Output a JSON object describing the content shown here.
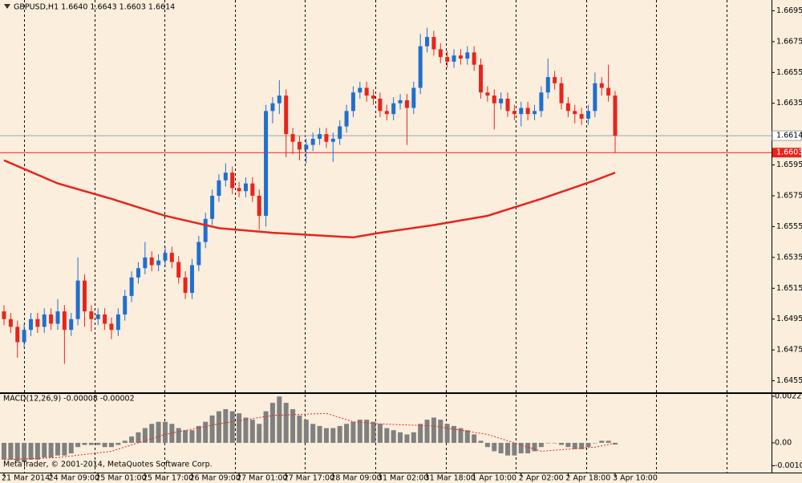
{
  "chart_data": [
    {
      "type": "candlestick",
      "title": "GBPUSD,H1  1.6640 1.6643 1.6603 1.6614",
      "up_color": "#1f6fd0",
      "down_color": "#e8241c",
      "candles": [
        [
          1.65,
          1.6504,
          1.6491,
          1.6495
        ],
        [
          1.6495,
          1.6499,
          1.6486,
          1.649
        ],
        [
          1.649,
          1.6494,
          1.647,
          1.648
        ],
        [
          1.648,
          1.6492,
          1.6476,
          1.6488
        ],
        [
          1.6488,
          1.6499,
          1.6484,
          1.6495
        ],
        [
          1.6495,
          1.6499,
          1.6486,
          1.649
        ],
        [
          1.649,
          1.6502,
          1.6486,
          1.6498
        ],
        [
          1.6498,
          1.6502,
          1.6488,
          1.6492
        ],
        [
          1.6492,
          1.6508,
          1.6488,
          1.65
        ],
        [
          1.65,
          1.6504,
          1.6466,
          1.6488
        ],
        [
          1.6488,
          1.6499,
          1.6484,
          1.6495
        ],
        [
          1.6495,
          1.6535,
          1.6491,
          1.652
        ],
        [
          1.652,
          1.6524,
          1.649,
          1.65
        ],
        [
          1.65,
          1.6504,
          1.6487,
          1.6495
        ],
        [
          1.6495,
          1.6502,
          1.6491,
          1.6498
        ],
        [
          1.6498,
          1.6502,
          1.6488,
          1.6492
        ],
        [
          1.6492,
          1.6496,
          1.6482,
          1.6488
        ],
        [
          1.6488,
          1.6502,
          1.6484,
          1.6498
        ],
        [
          1.6498,
          1.6514,
          1.6494,
          1.651
        ],
        [
          1.651,
          1.6526,
          1.6506,
          1.6522
        ],
        [
          1.6522,
          1.6532,
          1.6518,
          1.6528
        ],
        [
          1.6528,
          1.6545,
          1.6524,
          1.6535
        ],
        [
          1.6535,
          1.6539,
          1.6526,
          1.653
        ],
        [
          1.653,
          1.6537,
          1.6526,
          1.6533
        ],
        [
          1.6533,
          1.6542,
          1.6529,
          1.6538
        ],
        [
          1.6538,
          1.6542,
          1.6528,
          1.6532
        ],
        [
          1.6532,
          1.6536,
          1.6518,
          1.6522
        ],
        [
          1.6522,
          1.6526,
          1.6508,
          1.6512
        ],
        [
          1.6512,
          1.6534,
          1.6508,
          1.653
        ],
        [
          1.653,
          1.6549,
          1.6526,
          1.6545
        ],
        [
          1.6545,
          1.6564,
          1.6541,
          1.656
        ],
        [
          1.656,
          1.6579,
          1.6556,
          1.6575
        ],
        [
          1.6575,
          1.6589,
          1.6571,
          1.6585
        ],
        [
          1.6585,
          1.6596,
          1.6581,
          1.659
        ],
        [
          1.659,
          1.6594,
          1.6576,
          1.658
        ],
        [
          1.658,
          1.6584,
          1.6574,
          1.6578
        ],
        [
          1.6578,
          1.6587,
          1.6574,
          1.6583
        ],
        [
          1.6583,
          1.6587,
          1.6571,
          1.6575
        ],
        [
          1.6575,
          1.6579,
          1.6553,
          1.6562
        ],
        [
          1.6562,
          1.6634,
          1.6555,
          1.663
        ],
        [
          1.663,
          1.6639,
          1.6622,
          1.6635
        ],
        [
          1.6635,
          1.665,
          1.6628,
          1.664
        ],
        [
          1.664,
          1.6644,
          1.66,
          1.6615
        ],
        [
          1.6615,
          1.6619,
          1.6602,
          1.661
        ],
        [
          1.661,
          1.6614,
          1.6598,
          1.6605
        ],
        [
          1.6605,
          1.6612,
          1.6596,
          1.6608
        ],
        [
          1.6608,
          1.6616,
          1.6604,
          1.6612
        ],
        [
          1.6612,
          1.6619,
          1.6608,
          1.6615
        ],
        [
          1.6615,
          1.6619,
          1.6606,
          1.661
        ],
        [
          1.661,
          1.6616,
          1.6597,
          1.6612
        ],
        [
          1.6612,
          1.6624,
          1.6608,
          1.662
        ],
        [
          1.662,
          1.6634,
          1.6616,
          1.663
        ],
        [
          1.663,
          1.6646,
          1.6626,
          1.6642
        ],
        [
          1.6642,
          1.6649,
          1.6638,
          1.6645
        ],
        [
          1.6645,
          1.6649,
          1.6636,
          1.664
        ],
        [
          1.664,
          1.6644,
          1.6634,
          1.6638
        ],
        [
          1.6638,
          1.6642,
          1.6626,
          1.663
        ],
        [
          1.663,
          1.6634,
          1.6624,
          1.6628
        ],
        [
          1.6628,
          1.6639,
          1.6624,
          1.6635
        ],
        [
          1.6635,
          1.6641,
          1.6631,
          1.6637
        ],
        [
          1.6637,
          1.6641,
          1.6608,
          1.6632
        ],
        [
          1.6632,
          1.6649,
          1.6628,
          1.6645
        ],
        [
          1.6645,
          1.668,
          1.6641,
          1.6672
        ],
        [
          1.6672,
          1.6684,
          1.6668,
          1.6678
        ],
        [
          1.6678,
          1.6682,
          1.6666,
          1.667
        ],
        [
          1.667,
          1.6674,
          1.6661,
          1.6665
        ],
        [
          1.6665,
          1.6669,
          1.6658,
          1.6662
        ],
        [
          1.6662,
          1.667,
          1.6658,
          1.6666
        ],
        [
          1.6666,
          1.667,
          1.666,
          1.6664
        ],
        [
          1.6664,
          1.6672,
          1.666,
          1.6668
        ],
        [
          1.6668,
          1.6672,
          1.6656,
          1.666
        ],
        [
          1.666,
          1.6664,
          1.6638,
          1.6642
        ],
        [
          1.6642,
          1.6646,
          1.6636,
          1.664
        ],
        [
          1.664,
          1.6644,
          1.6618,
          1.6635
        ],
        [
          1.6635,
          1.6642,
          1.6631,
          1.6638
        ],
        [
          1.6638,
          1.6642,
          1.6626,
          1.663
        ],
        [
          1.663,
          1.6634,
          1.6624,
          1.6628
        ],
        [
          1.6628,
          1.6636,
          1.662,
          1.6632
        ],
        [
          1.6632,
          1.6636,
          1.6624,
          1.6628
        ],
        [
          1.6628,
          1.6634,
          1.6624,
          1.663
        ],
        [
          1.663,
          1.6646,
          1.6626,
          1.6642
        ],
        [
          1.6642,
          1.6664,
          1.6638,
          1.6652
        ],
        [
          1.6652,
          1.6656,
          1.6644,
          1.6648
        ],
        [
          1.6648,
          1.6652,
          1.6631,
          1.6635
        ],
        [
          1.6635,
          1.6639,
          1.6626,
          1.663
        ],
        [
          1.663,
          1.6634,
          1.6622,
          1.6628
        ],
        [
          1.6628,
          1.6632,
          1.6621,
          1.6625
        ],
        [
          1.6625,
          1.6634,
          1.6621,
          1.663
        ],
        [
          1.663,
          1.6655,
          1.6626,
          1.6648
        ],
        [
          1.6648,
          1.6652,
          1.664,
          1.6645
        ],
        [
          1.6645,
          1.666,
          1.6636,
          1.664
        ],
        [
          1.664,
          1.6643,
          1.6603,
          1.6614
        ]
      ],
      "ma": {
        "color": "#e8241c",
        "x": [
          0,
          8,
          16,
          24,
          32,
          40,
          48,
          52,
          56,
          64,
          72,
          80,
          88,
          91
        ],
        "values": [
          1.6598,
          1.6583,
          1.6573,
          1.6562,
          1.6554,
          1.6551,
          1.6549,
          1.6548,
          1.6551,
          1.6556,
          1.6562,
          1.6573,
          1.6585,
          1.659
        ]
      },
      "bid_line": 1.6614,
      "level_line": 1.6603,
      "ylim": [
        1.6448,
        1.6702
      ],
      "yticks": [
        1.6695,
        1.6675,
        1.6655,
        1.6635,
        1.6595,
        1.6575,
        1.6555,
        1.6535,
        1.6515,
        1.6495,
        1.6475,
        1.6455
      ],
      "x_labels": [
        "21 Mar 2014",
        "24 Mar 09:00",
        "25 Mar 01:00",
        "25 Mar 17:00",
        "26 Mar 09:00",
        "27 Mar 01:00",
        "27 Mar 17:00",
        "28 Mar 09:00",
        "31 Mar 02:00",
        "31 Mar 18:00",
        "1 Apr 10:00",
        "2 Apr 02:00",
        "2 Apr 18:00",
        "3 Apr 10:00"
      ]
    },
    {
      "type": "macd",
      "title": "MACD(12,26,9) -0.00008 -0.00002",
      "color": "#808080",
      "histogram": [
        -0.0008,
        -0.0008,
        -0.0009,
        -0.0009,
        -0.0008,
        -0.0008,
        -0.0007,
        -0.0007,
        -0.0006,
        -0.0006,
        -0.0005,
        -0.0002,
        -0.0001,
        -0.0001,
        -0.0001,
        -0.0002,
        -0.0002,
        -0.0001,
        0.0001,
        0.0003,
        0.0005,
        0.0007,
        0.0009,
        0.001,
        0.001,
        0.0009,
        0.0007,
        0.0006,
        0.0006,
        0.0008,
        0.001,
        0.0013,
        0.0015,
        0.0016,
        0.0015,
        0.0014,
        0.0012,
        0.0011,
        0.0009,
        0.0015,
        0.0019,
        0.0022,
        0.0019,
        0.0016,
        0.0013,
        0.0011,
        0.0009,
        0.0008,
        0.0007,
        0.0007,
        0.0008,
        0.0009,
        0.001,
        0.0011,
        0.0011,
        0.001,
        0.0009,
        0.0007,
        0.0006,
        0.0005,
        0.0004,
        0.0005,
        0.0009,
        0.0011,
        0.0012,
        0.0011,
        0.0009,
        0.0008,
        0.0007,
        0.0006,
        0.0004,
        0.0001,
        -0.0002,
        -0.0004,
        -0.0005,
        -0.0006,
        -0.0006,
        -0.0005,
        -0.0005,
        -0.0004,
        -0.0002,
        0.0,
        0.0,
        -0.0001,
        -0.0002,
        -0.0003,
        -0.0003,
        -0.0002,
        0.0,
        0.0001,
        0.0001,
        -8e-05
      ],
      "signal": {
        "color": "#e8241c",
        "x": [
          0,
          8,
          16,
          24,
          32,
          40,
          48,
          52,
          56,
          64,
          72,
          80,
          88,
          91
        ],
        "values": [
          -0.0008,
          -0.0007,
          -0.0004,
          0.0004,
          0.0009,
          0.0013,
          0.0014,
          0.001,
          0.0009,
          0.0008,
          0.0004,
          -0.0004,
          -0.0002,
          -2e-05
        ]
      },
      "ylim": [
        -0.00145,
        0.00236
      ],
      "yticks": [
        0.00221,
        {
          "value": 0,
          "label": "0.00"
        },
        -0.00109
      ]
    }
  ],
  "footer": "MetaTrader, © 2001-2014, MetaQuotes Software Corp."
}
